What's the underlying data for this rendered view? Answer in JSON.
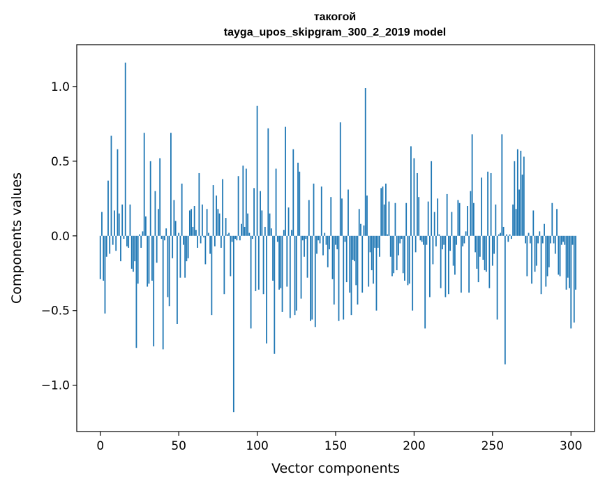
{
  "chart_data": {
    "type": "bar",
    "title": "такогой",
    "subtitle": "tayga_upos_skipgram_300_2_2019 model",
    "xlabel": "Vector components",
    "ylabel": "Components values",
    "xlim": [
      -15,
      315
    ],
    "ylim": [
      -1.31,
      1.28
    ],
    "xticks": [
      0,
      50,
      100,
      150,
      200,
      250,
      300
    ],
    "xtick_labels": [
      "0",
      "50",
      "100",
      "150",
      "200",
      "250",
      "300"
    ],
    "yticks": [
      -1.0,
      -0.5,
      0.0,
      0.5,
      1.0
    ],
    "ytick_labels": [
      "−1.0",
      "−0.5",
      "0.0",
      "0.5",
      "1.0"
    ],
    "grid": false,
    "bar_color": "#1f77b4",
    "values": [
      -0.29,
      0.16,
      -0.3,
      -0.52,
      -0.14,
      0.37,
      -0.12,
      0.67,
      -0.06,
      0.17,
      -0.1,
      0.58,
      0.15,
      -0.17,
      0.21,
      -0.02,
      1.16,
      -0.07,
      -0.08,
      0.21,
      -0.22,
      -0.24,
      -0.17,
      -0.75,
      -0.32,
      0.01,
      -0.08,
      0.03,
      0.69,
      0.13,
      -0.34,
      -0.32,
      0.5,
      -0.3,
      -0.74,
      0.3,
      -0.18,
      0.18,
      0.52,
      -0.02,
      -0.76,
      -0.03,
      0.05,
      -0.41,
      -0.47,
      0.69,
      -0.15,
      0.24,
      0.1,
      -0.59,
      0.02,
      -0.28,
      0.35,
      -0.06,
      -0.28,
      -0.17,
      -0.15,
      0.17,
      0.18,
      0.06,
      0.2,
      0.04,
      -0.08,
      0.42,
      -0.05,
      0.21,
      -0.01,
      -0.19,
      0.18,
      0.02,
      -0.12,
      -0.53,
      0.34,
      -0.07,
      0.27,
      0.18,
      0.15,
      -0.08,
      0.38,
      -0.39,
      0.12,
      0.01,
      0.02,
      -0.27,
      -0.04,
      -1.18,
      -0.02,
      -0.03,
      0.4,
      -0.03,
      0.08,
      0.47,
      0.06,
      0.45,
      0.15,
      0.02,
      -0.62,
      -0.02,
      0.32,
      -0.37,
      0.87,
      -0.36,
      0.3,
      0.17,
      -0.39,
      0.06,
      -0.72,
      0.72,
      0.15,
      0.05,
      -0.3,
      -0.79,
      0.45,
      -0.04,
      -0.36,
      -0.35,
      -0.51,
      0.04,
      0.73,
      -0.34,
      0.19,
      -0.55,
      0.04,
      0.58,
      -0.53,
      -0.5,
      0.49,
      0.43,
      -0.42,
      -0.03,
      -0.14,
      -0.02,
      -0.28,
      0.24,
      -0.57,
      -0.56,
      0.35,
      -0.61,
      -0.12,
      -0.03,
      -0.05,
      0.33,
      -0.13,
      0.02,
      -0.06,
      -0.21,
      -0.09,
      0.26,
      -0.29,
      -0.46,
      -0.06,
      -0.09,
      -0.57,
      0.76,
      0.25,
      -0.56,
      -0.04,
      -0.31,
      0.31,
      -0.38,
      -0.53,
      -0.16,
      -0.17,
      -0.33,
      -0.46,
      0.18,
      0.08,
      -0.38,
      0.07,
      0.99,
      0.27,
      -0.34,
      -0.11,
      -0.23,
      -0.32,
      -0.08,
      -0.5,
      -0.08,
      -0.14,
      0.32,
      0.33,
      0.21,
      0.35,
      0.01,
      0.23,
      -0.14,
      -0.27,
      -0.25,
      0.22,
      -0.23,
      -0.13,
      -0.05,
      -0.02,
      -0.25,
      -0.3,
      0.22,
      -0.33,
      -0.32,
      0.6,
      -0.5,
      0.52,
      -0.11,
      0.42,
      0.26,
      -0.03,
      -0.04,
      -0.06,
      -0.62,
      -0.06,
      0.23,
      -0.41,
      0.5,
      -0.19,
      0.16,
      -0.07,
      0.25,
      0.01,
      -0.35,
      -0.09,
      -0.06,
      -0.41,
      0.28,
      -0.39,
      -0.1,
      0.16,
      -0.2,
      -0.26,
      -0.06,
      0.24,
      0.22,
      -0.38,
      -0.07,
      -0.05,
      0.03,
      0.2,
      -0.38,
      0.3,
      0.68,
      0.22,
      -0.11,
      -0.22,
      -0.31,
      -0.14,
      0.39,
      -0.16,
      -0.23,
      -0.24,
      0.43,
      -0.35,
      0.42,
      -0.2,
      -0.12,
      0.21,
      -0.56,
      0.01,
      0.02,
      0.68,
      0.06,
      -0.86,
      0.01,
      -0.04,
      0.01,
      -0.02,
      0.21,
      0.5,
      0.18,
      0.58,
      0.31,
      0.57,
      0.41,
      0.53,
      -0.05,
      -0.27,
      0.02,
      -0.05,
      -0.32,
      0.17,
      -0.24,
      -0.2,
      -0.05,
      0.03,
      -0.39,
      -0.05,
      0.08,
      -0.34,
      -0.27,
      -0.21,
      -0.05,
      0.22,
      -0.05,
      -0.12,
      0.18,
      -0.26,
      -0.27,
      -0.06,
      -0.04,
      -0.06,
      -0.36,
      -0.28,
      -0.35,
      -0.62,
      -0.06,
      -0.58,
      -0.36
    ]
  }
}
